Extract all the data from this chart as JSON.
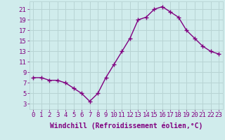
{
  "x": [
    0,
    1,
    2,
    3,
    4,
    5,
    6,
    7,
    8,
    9,
    10,
    11,
    12,
    13,
    14,
    15,
    16,
    17,
    18,
    19,
    20,
    21,
    22,
    23
  ],
  "y": [
    8.0,
    8.0,
    7.5,
    7.5,
    7.0,
    6.0,
    5.0,
    3.5,
    5.0,
    8.0,
    10.5,
    13.0,
    15.5,
    19.0,
    19.5,
    21.0,
    21.5,
    20.5,
    19.5,
    17.0,
    15.5,
    14.0,
    13.0,
    12.5
  ],
  "line_color": "#800080",
  "marker": "+",
  "marker_size": 4,
  "marker_linewidth": 1.0,
  "bg_color": "#d0ecec",
  "grid_color": "#b8d4d4",
  "xlabel": "Windchill (Refroidissement éolien,°C)",
  "ylabel_ticks": [
    3,
    5,
    7,
    9,
    11,
    13,
    15,
    17,
    19,
    21
  ],
  "xlim": [
    -0.5,
    23.5
  ],
  "ylim": [
    2.0,
    22.5
  ],
  "xticks": [
    0,
    1,
    2,
    3,
    4,
    5,
    6,
    7,
    8,
    9,
    10,
    11,
    12,
    13,
    14,
    15,
    16,
    17,
    18,
    19,
    20,
    21,
    22,
    23
  ],
  "tick_color": "#800080",
  "label_fontsize": 6.5,
  "axis_label_fontsize": 7.0,
  "linewidth": 1.0
}
